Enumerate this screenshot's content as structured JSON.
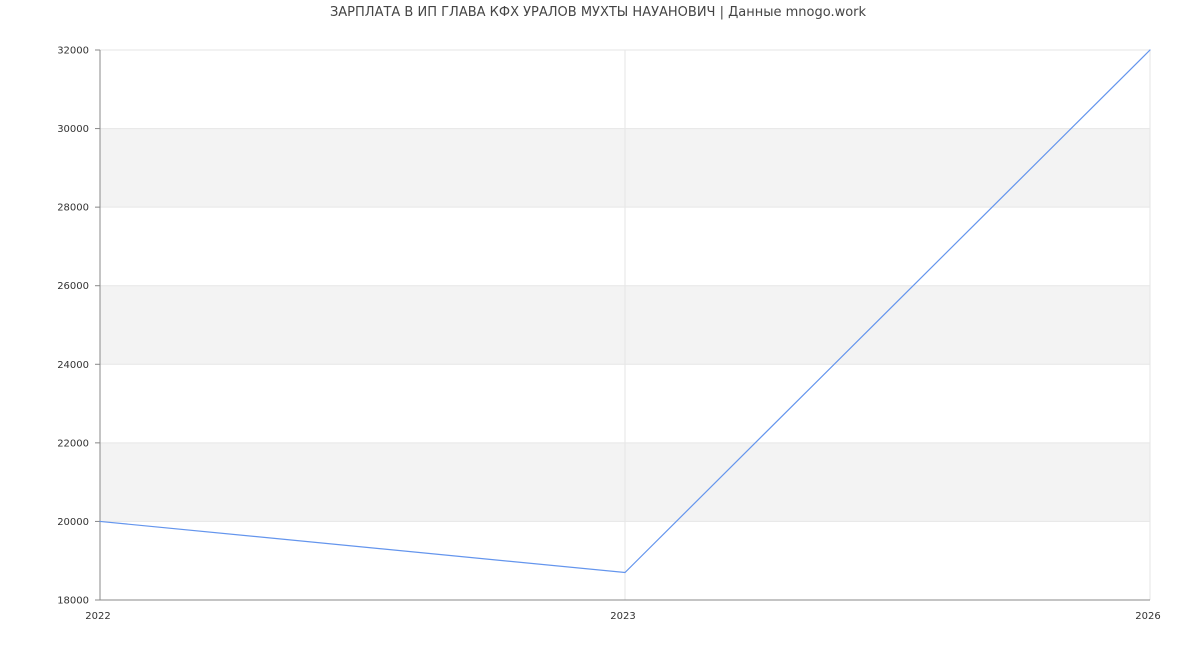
{
  "chart_data": {
    "type": "line",
    "title": "ЗАРПЛАТА В ИП ГЛАВА КФХ УРАЛОВ МУХТЫ НАУАНОВИЧ | Данные mnogo.work",
    "xlabel": "",
    "ylabel": "",
    "categories": [
      "2022",
      "2023",
      "2026"
    ],
    "series": [
      {
        "values": [
          20000,
          18700,
          32000
        ]
      }
    ],
    "ylim": [
      18000,
      32000
    ],
    "yticks": [
      18000,
      20000,
      22000,
      24000,
      26000,
      28000,
      30000,
      32000
    ],
    "grid": true,
    "legend": "none",
    "colors": {
      "line": "#6495ed",
      "band": "#f3f3f3",
      "grid": "#e6e6e6",
      "axis": "#888888"
    }
  }
}
